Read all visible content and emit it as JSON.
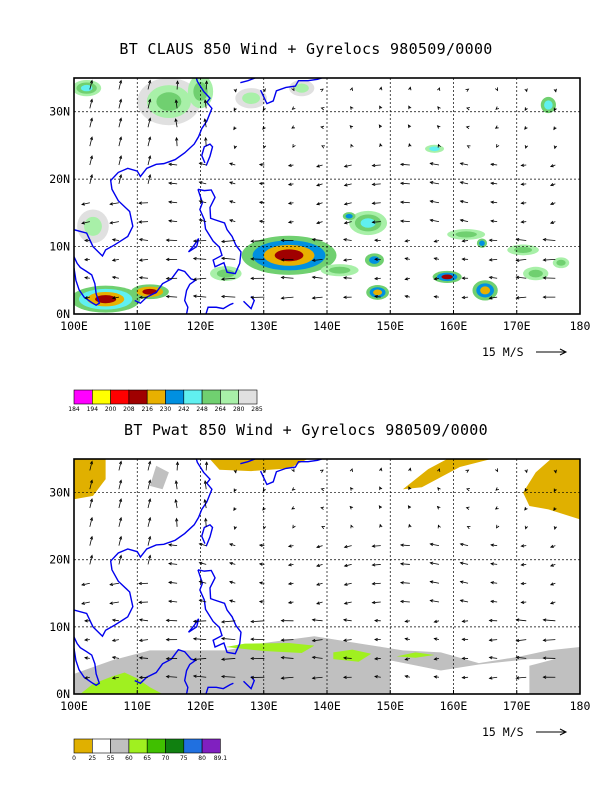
{
  "panels": [
    {
      "title": "BT CLAUS 850 Wind + Gyrelocs 980509/0000",
      "lon_labels": [
        "100E",
        "110E",
        "120E",
        "130E",
        "140E",
        "150E",
        "160E",
        "170E",
        "180"
      ],
      "lat_labels": [
        "0N",
        "10N",
        "20N",
        "30N"
      ],
      "scale_label": "15 M/S",
      "colorbar": {
        "labels": [
          "184",
          "194",
          "200",
          "208",
          "216",
          "230",
          "242",
          "248",
          "264",
          "280",
          "285"
        ],
        "colors": [
          "#ff00ff",
          "#ffff00",
          "#ff0000",
          "#a00000",
          "#e8b000",
          "#0090e0",
          "#60f0f0",
          "#70d070",
          "#a8f0a8",
          "#e0e0e0"
        ]
      }
    },
    {
      "title": "BT Pwat 850 Wind + Gyrelocs 980509/0000",
      "lon_labels": [
        "100E",
        "110E",
        "120E",
        "130E",
        "140E",
        "150E",
        "160E",
        "170E",
        "180"
      ],
      "lat_labels": [
        "0N",
        "10N",
        "20N",
        "30N"
      ],
      "scale_label": "15 M/S",
      "colorbar": {
        "labels": [
          "0",
          "25",
          "55",
          "60",
          "65",
          "70",
          "75",
          "80",
          "89.1"
        ],
        "colors": [
          "#e0b000",
          "#ffffff",
          "#c0c0c0",
          "#a0f020",
          "#40c000",
          "#108010",
          "#2070e0",
          "#8020c0"
        ]
      }
    }
  ]
}
